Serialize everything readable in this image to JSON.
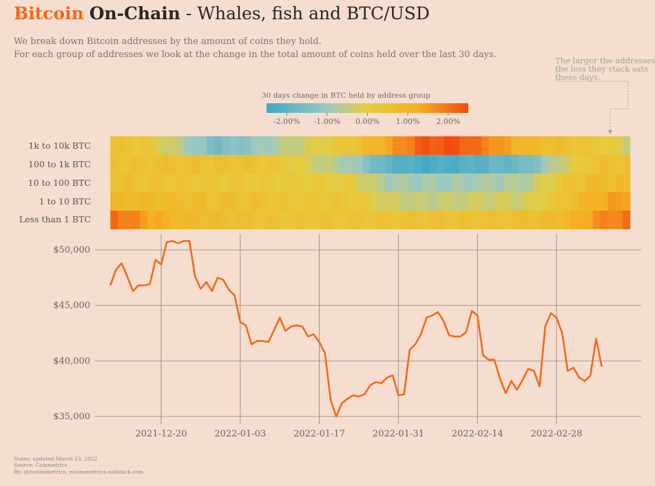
{
  "title": {
    "part1": "Bitcoin",
    "part2": "On-Chain",
    "part3": " - Whales, fish and BTC/USD"
  },
  "subtitle": {
    "line1": "We break down Bitcoin addresses by the amount of coins they hold.",
    "line2": "For each group of addresses we look at the change in the total amount of coins held over the last 30 days."
  },
  "annotation": [
    "The larger the addresses",
    "the less they stack sats",
    "these days."
  ],
  "colors": {
    "accent": "#f26a1b",
    "background": "#f5ddd0",
    "line": "#f26a1b",
    "grid": "#8a8580"
  },
  "notes": [
    "Notes: updated March 13, 2022",
    "Source: Coinmetrics",
    "By: @ecoinometrics, ecoinometrics.substack.com"
  ],
  "chart_data": [
    {
      "type": "heatmap",
      "title": "30 days change in BTC held by address group",
      "rows": [
        "1k to 10k BTC",
        "100 to 1k BTC",
        "10 to 100 BTC",
        "1 to 10 BTC",
        "Less than 1 BTC"
      ],
      "x_range": [
        "2021-12-11",
        "2022-03-13"
      ],
      "colorbar": {
        "min": -2.5,
        "max": 2.5,
        "ticks": [
          -2.0,
          -1.0,
          0.0,
          1.0,
          2.0
        ],
        "tick_labels": [
          "-2.00%",
          "-1.00%",
          "0.00%",
          "1.00%",
          "2.00%"
        ],
        "colors": [
          "#3fa7c6",
          "#9cc9c3",
          "#e6cc3e",
          "#f5b023",
          "#f24a10"
        ]
      },
      "values": [
        [
          0.5,
          0.3,
          -0.6,
          -1.6,
          -1.2,
          -0.6,
          -0.1,
          0.4,
          1.3,
          2.3,
          2.4,
          1.7,
          0.9,
          0.6,
          0.3,
          -0.4
        ],
        [
          0.5,
          0.5,
          0.6,
          0.5,
          0.5,
          0.2,
          -0.4,
          -0.9,
          -2.0,
          -2.3,
          -2.2,
          -1.9,
          -1.7,
          -0.4,
          0.5,
          0.6
        ],
        [
          0.6,
          0.5,
          0.4,
          0.3,
          0.2,
          0.2,
          0.1,
          0.0,
          -0.8,
          -0.9,
          -0.9,
          -0.8,
          -0.7,
          0.3,
          0.8,
          0.7
        ],
        [
          0.9,
          0.8,
          0.7,
          0.6,
          0.5,
          0.4,
          0.3,
          0.3,
          -0.3,
          -0.5,
          -0.4,
          -0.3,
          -0.3,
          0.4,
          1.2,
          1.6
        ],
        [
          2.2,
          1.5,
          0.9,
          0.7,
          0.5,
          0.4,
          0.4,
          0.4,
          0.4,
          0.5,
          0.5,
          0.5,
          0.6,
          0.8,
          1.6,
          2.0
        ]
      ]
    },
    {
      "type": "line",
      "series": [
        {
          "values": [
            [
              "2021-12-11",
              46800
            ],
            [
              "2021-12-12",
              48200
            ],
            [
              "2021-12-13",
              48800
            ],
            [
              "2021-12-14",
              47600
            ],
            [
              "2021-12-15",
              46300
            ],
            [
              "2021-12-16",
              46800
            ],
            [
              "2021-12-17",
              46800
            ],
            [
              "2021-12-18",
              46900
            ],
            [
              "2021-12-19",
              49100
            ],
            [
              "2021-12-20",
              48700
            ],
            [
              "2021-12-21",
              50700
            ],
            [
              "2021-12-22",
              50800
            ],
            [
              "2021-12-23",
              50600
            ],
            [
              "2021-12-24",
              50800
            ],
            [
              "2021-12-25",
              50800
            ],
            [
              "2021-12-26",
              47600
            ],
            [
              "2021-12-27",
              46500
            ],
            [
              "2021-12-28",
              47100
            ],
            [
              "2021-12-29",
              46300
            ],
            [
              "2021-12-30",
              47500
            ],
            [
              "2021-12-31",
              47300
            ],
            [
              "2022-01-01",
              46400
            ],
            [
              "2022-01-02",
              45900
            ],
            [
              "2022-01-03",
              43500
            ],
            [
              "2022-01-04",
              43200
            ],
            [
              "2022-01-05",
              41500
            ],
            [
              "2022-01-06",
              41800
            ],
            [
              "2022-01-07",
              41800
            ],
            [
              "2022-01-08",
              41700
            ],
            [
              "2022-01-09",
              42800
            ],
            [
              "2022-01-10",
              43900
            ],
            [
              "2022-01-11",
              42700
            ],
            [
              "2022-01-12",
              43100
            ],
            [
              "2022-01-13",
              43200
            ],
            [
              "2022-01-14",
              43100
            ],
            [
              "2022-01-15",
              42200
            ],
            [
              "2022-01-16",
              42400
            ],
            [
              "2022-01-17",
              41700
            ],
            [
              "2022-01-18",
              40700
            ],
            [
              "2022-01-19",
              36500
            ],
            [
              "2022-01-20",
              35000
            ],
            [
              "2022-01-21",
              36200
            ],
            [
              "2022-01-22",
              36600
            ],
            [
              "2022-01-23",
              36900
            ],
            [
              "2022-01-24",
              36800
            ],
            [
              "2022-01-25",
              37000
            ],
            [
              "2022-01-26",
              37800
            ],
            [
              "2022-01-27",
              38100
            ],
            [
              "2022-01-28",
              38000
            ],
            [
              "2022-01-29",
              38500
            ],
            [
              "2022-01-30",
              38700
            ],
            [
              "2022-01-31",
              36900
            ],
            [
              "2022-02-01",
              37000
            ],
            [
              "2022-02-02",
              41000
            ],
            [
              "2022-02-03",
              41500
            ],
            [
              "2022-02-04",
              42400
            ],
            [
              "2022-02-05",
              43900
            ],
            [
              "2022-02-06",
              44100
            ],
            [
              "2022-02-07",
              44400
            ],
            [
              "2022-02-08",
              43600
            ],
            [
              "2022-02-09",
              42300
            ],
            [
              "2022-02-10",
              42200
            ],
            [
              "2022-02-11",
              42200
            ],
            [
              "2022-02-12",
              42600
            ],
            [
              "2022-02-13",
              44500
            ],
            [
              "2022-02-14",
              44100
            ],
            [
              "2022-02-15",
              40500
            ],
            [
              "2022-02-16",
              40100
            ],
            [
              "2022-02-17",
              40100
            ],
            [
              "2022-02-18",
              38400
            ],
            [
              "2022-02-19",
              37100
            ],
            [
              "2022-02-20",
              38200
            ],
            [
              "2022-02-21",
              37400
            ],
            [
              "2022-02-22",
              38300
            ],
            [
              "2022-02-23",
              39300
            ],
            [
              "2022-02-24",
              39100
            ],
            [
              "2022-02-25",
              37700
            ],
            [
              "2022-02-26",
              43100
            ],
            [
              "2022-02-27",
              44300
            ],
            [
              "2022-02-28",
              43900
            ],
            [
              "2022-03-01",
              42500
            ],
            [
              "2022-03-02",
              39100
            ],
            [
              "2022-03-03",
              39400
            ],
            [
              "2022-03-04",
              38500
            ],
            [
              "2022-03-05",
              38200
            ],
            [
              "2022-03-06",
              38700
            ],
            [
              "2022-03-07",
              42000
            ],
            [
              "2022-03-08",
              39500
            ]
          ]
        }
      ],
      "x_ticks": [
        "2021-12-20",
        "2022-01-03",
        "2022-01-17",
        "2022-01-31",
        "2022-02-14",
        "2022-02-28"
      ],
      "y_ticks": [
        "$35,000",
        "$40,000",
        "$45,000",
        "$50,000"
      ],
      "ylim": [
        34000,
        51500
      ],
      "grid": true
    }
  ]
}
